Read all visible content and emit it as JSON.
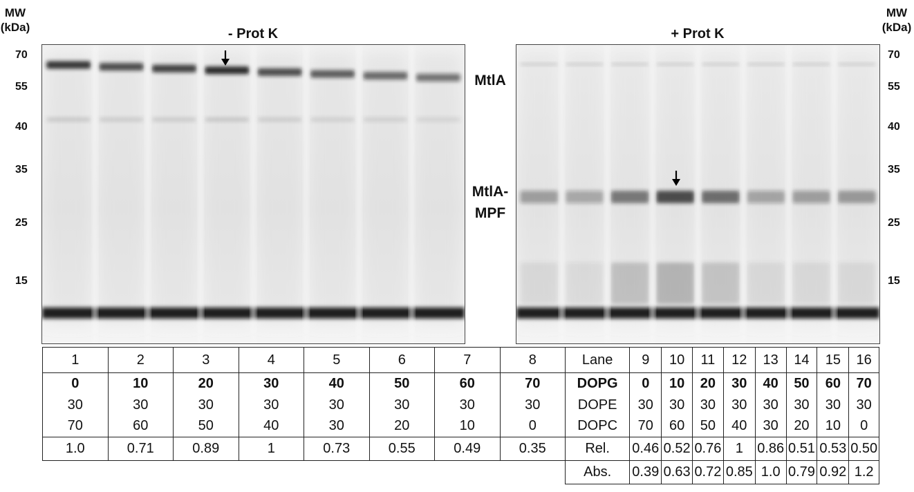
{
  "left_panel": {
    "title": "- Prot K",
    "mw_header": [
      "MW",
      "(kDa)"
    ],
    "mw_markers": [
      "70",
      "55",
      "40",
      "35",
      "25",
      "15"
    ]
  },
  "right_panel": {
    "title": "+ Prot K",
    "mw_header": [
      "MW",
      "(kDa)"
    ],
    "mw_markers": [
      "70",
      "55",
      "40",
      "35",
      "25",
      "15"
    ]
  },
  "band_labels": {
    "mtla": "MtlA",
    "mtla_mpf_1": "MtlA-",
    "mtla_mpf_2": "MPF"
  },
  "table": {
    "row_labels": [
      "Lane",
      "DOPG",
      "DOPE",
      "DOPC",
      "Rel.",
      "Abs."
    ],
    "left_lanes": [
      "1",
      "2",
      "3",
      "4",
      "5",
      "6",
      "7",
      "8"
    ],
    "left_dopg": [
      "0",
      "10",
      "20",
      "30",
      "40",
      "50",
      "60",
      "70"
    ],
    "left_dope": [
      "30",
      "30",
      "30",
      "30",
      "30",
      "30",
      "30",
      "30"
    ],
    "left_dopc": [
      "70",
      "60",
      "50",
      "40",
      "30",
      "20",
      "10",
      "0"
    ],
    "left_rel": [
      "1.0",
      "0.71",
      "0.89",
      "1",
      "0.73",
      "0.55",
      "0.49",
      "0.35"
    ],
    "right_lanes": [
      "9",
      "10",
      "11",
      "12",
      "13",
      "14",
      "15",
      "16"
    ],
    "right_dopg": [
      "0",
      "10",
      "20",
      "30",
      "40",
      "50",
      "60",
      "70"
    ],
    "right_dope": [
      "30",
      "30",
      "30",
      "30",
      "30",
      "30",
      "30",
      "30"
    ],
    "right_dopc": [
      "70",
      "60",
      "50",
      "40",
      "30",
      "20",
      "10",
      "0"
    ],
    "right_rel": [
      "0.46",
      "0.52",
      "0.76",
      "1",
      "0.86",
      "0.51",
      "0.53",
      "0.50"
    ],
    "right_abs": [
      "0.39",
      "0.63",
      "0.72",
      "0.85",
      "1.0",
      "0.79",
      "0.92",
      "1.2"
    ]
  },
  "gel": {
    "left_mtla_intensity": [
      0.85,
      0.75,
      0.8,
      0.9,
      0.75,
      0.68,
      0.62,
      0.55
    ],
    "right_mpf_intensity": [
      0.35,
      0.3,
      0.55,
      0.78,
      0.6,
      0.32,
      0.35,
      0.4
    ],
    "right_lower_smear": [
      0.1,
      0.08,
      0.25,
      0.32,
      0.22,
      0.1,
      0.1,
      0.1
    ]
  },
  "icons": {
    "arrow_left": "down-arrow-icon",
    "arrow_right": "down-arrow-icon"
  }
}
